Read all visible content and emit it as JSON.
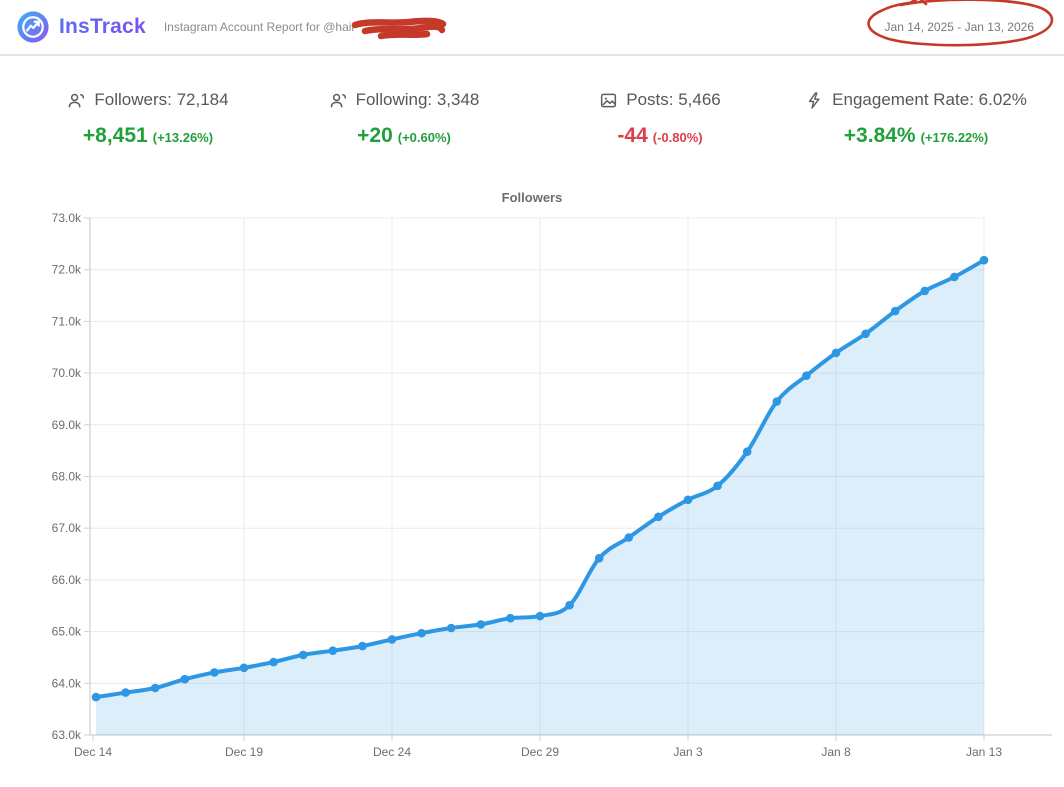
{
  "header": {
    "app_name": "InsTrack",
    "report_label": "Instagram Account Report for @hair",
    "username_redacted": true,
    "date_range": "Jan 14, 2025 - Jan 13, 2026"
  },
  "stats": [
    {
      "icon": "people-icon",
      "label": "Followers: 72,184",
      "change": "+8,451",
      "change_pct": "(+13.26%)",
      "direction": "up"
    },
    {
      "icon": "people-icon",
      "label": "Following: 3,348",
      "change": "+20",
      "change_pct": "(+0.60%)",
      "direction": "up"
    },
    {
      "icon": "image-icon",
      "label": "Posts: 5,466",
      "change": "-44",
      "change_pct": "(-0.80%)",
      "direction": "down"
    },
    {
      "icon": "lightning-icon",
      "label": "Engagement Rate: 6.02%",
      "change": "+3.84%",
      "change_pct": "(+176.22%)",
      "direction": "up"
    }
  ],
  "colors": {
    "positive": "#21a03c",
    "negative": "#dd3e4b",
    "annotation": "#c5392b",
    "line": "#2e97e4",
    "area": "rgba(46,151,228,0.16)",
    "grid": "#ebebeb",
    "axis": "#cfcfcf",
    "tick_text": "#6a6e73"
  },
  "chart_data": {
    "type": "area",
    "title": "Followers",
    "x": [
      "Dec 14",
      "Dec 15",
      "Dec 16",
      "Dec 17",
      "Dec 18",
      "Dec 19",
      "Dec 20",
      "Dec 21",
      "Dec 22",
      "Dec 23",
      "Dec 24",
      "Dec 25",
      "Dec 26",
      "Dec 27",
      "Dec 28",
      "Dec 29",
      "Dec 30",
      "Dec 31",
      "Jan 1",
      "Jan 2",
      "Jan 3",
      "Jan 4",
      "Jan 5",
      "Jan 6",
      "Jan 7",
      "Jan 8",
      "Jan 9",
      "Jan 10",
      "Jan 11",
      "Jan 12",
      "Jan 13"
    ],
    "values": [
      63733,
      63820,
      63910,
      64080,
      64210,
      64300,
      64410,
      64550,
      64630,
      64720,
      64850,
      64970,
      65070,
      65140,
      65260,
      65300,
      65510,
      66420,
      66820,
      67220,
      67550,
      67820,
      68480,
      69450,
      69950,
      70390,
      70760,
      71200,
      71590,
      71860,
      72184
    ],
    "xlabel": "",
    "ylabel": "",
    "ylim": [
      63000,
      73000
    ],
    "y_tick_values": [
      63000,
      64000,
      65000,
      66000,
      67000,
      68000,
      69000,
      70000,
      71000,
      72000,
      73000
    ],
    "y_tick_labels": [
      "63.0k",
      "64.0k",
      "65.0k",
      "66.0k",
      "67.0k",
      "68.0k",
      "69.0k",
      "70.0k",
      "71.0k",
      "72.0k",
      "73.0k"
    ],
    "x_tick_indices": [
      0,
      5,
      10,
      15,
      20,
      25,
      30
    ],
    "x_tick_labels": [
      "Dec 14",
      "Dec 19",
      "Dec 24",
      "Dec 29",
      "Jan 3",
      "Jan 8",
      "Jan 13"
    ],
    "grid": true,
    "legend": "none",
    "point_markers": true
  }
}
